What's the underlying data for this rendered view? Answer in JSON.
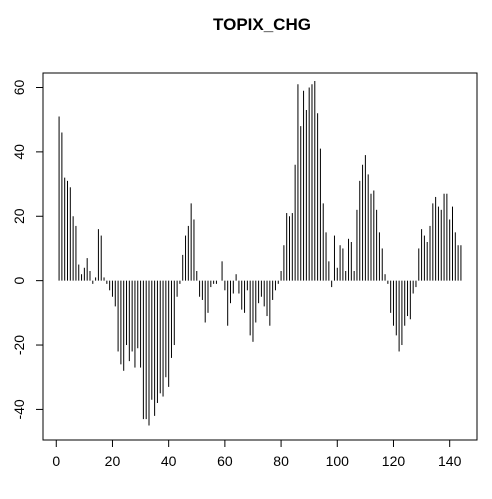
{
  "chart_data": {
    "type": "needle",
    "title": "TOPIX_CHG",
    "color": "#000000",
    "x": [
      1,
      2,
      3,
      4,
      5,
      6,
      7,
      8,
      9,
      10,
      11,
      12,
      13,
      14,
      15,
      16,
      17,
      18,
      19,
      20,
      21,
      22,
      23,
      24,
      25,
      26,
      27,
      28,
      29,
      30,
      31,
      32,
      33,
      34,
      35,
      36,
      37,
      38,
      39,
      40,
      41,
      42,
      43,
      44,
      45,
      46,
      47,
      48,
      49,
      50,
      51,
      52,
      53,
      54,
      55,
      56,
      57,
      58,
      59,
      60,
      61,
      62,
      63,
      64,
      65,
      66,
      67,
      68,
      69,
      70,
      71,
      72,
      73,
      74,
      75,
      76,
      77,
      78,
      79,
      80,
      81,
      82,
      83,
      84,
      85,
      86,
      87,
      88,
      89,
      90,
      91,
      92,
      93,
      94,
      95,
      96,
      97,
      98,
      99,
      100,
      101,
      102,
      103,
      104,
      105,
      106,
      107,
      108,
      109,
      110,
      111,
      112,
      113,
      114,
      115,
      116,
      117,
      118,
      119,
      120,
      121,
      122,
      123,
      124,
      125,
      126,
      127,
      128,
      129,
      130,
      131,
      132,
      133,
      134,
      135,
      136,
      137,
      138,
      139,
      140,
      141,
      142,
      143,
      144
    ],
    "values": [
      51,
      46,
      32,
      31,
      29,
      20,
      17,
      5,
      2,
      4,
      7,
      3,
      -1,
      1,
      16,
      14,
      1,
      -1,
      -3,
      -5,
      -8,
      -22,
      -26,
      -28,
      -20,
      -25,
      -22,
      -27,
      -21,
      -27,
      -43,
      -43,
      -45,
      -37,
      -42,
      -38,
      -35,
      -36,
      -30,
      -33,
      -24,
      -20,
      -5,
      -1,
      8,
      14,
      17,
      24,
      19,
      3,
      -5,
      -6,
      -13,
      -10,
      -2,
      -1,
      -1,
      0,
      6,
      -3,
      -14,
      -7,
      -4,
      2,
      -4,
      -9,
      -10,
      -3,
      -17,
      -19,
      -13,
      -7,
      -5,
      -8,
      -11,
      -14,
      -6,
      -3,
      -1,
      3,
      11,
      21,
      20,
      21,
      36,
      61,
      48,
      59,
      53,
      60,
      61,
      62,
      52,
      41,
      24,
      15,
      6,
      -2,
      14,
      4,
      11,
      10,
      3,
      13,
      12,
      3,
      22,
      31,
      36,
      39,
      33,
      27,
      28,
      22,
      15,
      10,
      2,
      -1,
      -10,
      -14,
      -17,
      -22,
      -20,
      -14,
      -11,
      -12,
      -4,
      -2,
      10,
      16,
      14,
      12,
      17,
      24,
      26,
      23,
      22,
      27,
      27,
      19,
      23,
      15,
      11,
      11
    ],
    "xlim": [
      -4.72,
      149.72
    ],
    "xticks": [
      0,
      20,
      40,
      60,
      80,
      100,
      120,
      140
    ],
    "ylim": [
      -49.5,
      64.5
    ],
    "yticks": [
      -40,
      -20,
      0,
      20,
      40,
      60
    ]
  }
}
